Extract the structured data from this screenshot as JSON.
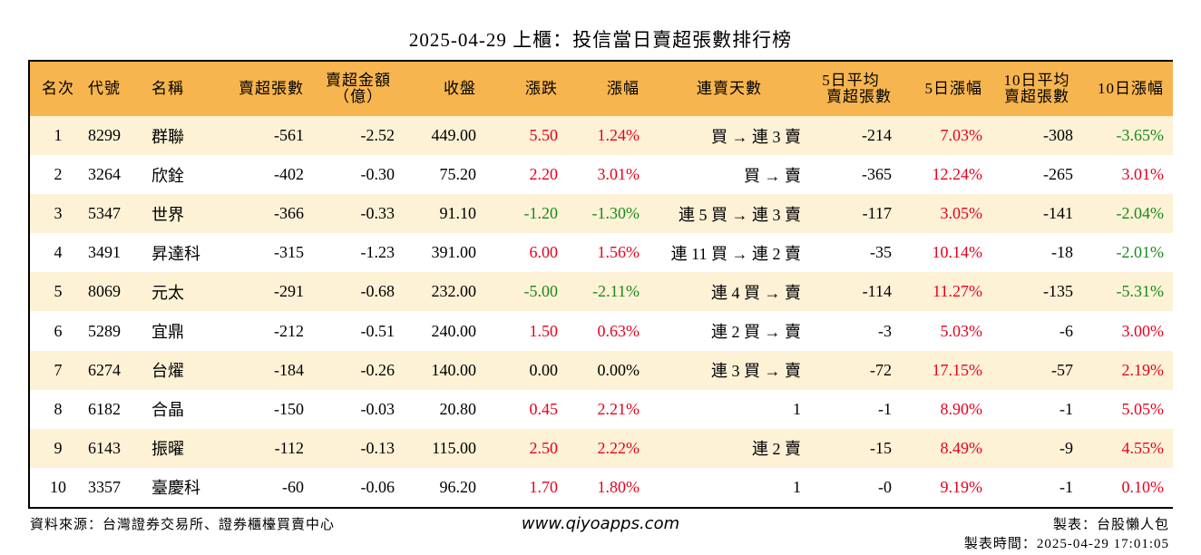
{
  "title": "2025-04-29 上櫃：投信當日賣超張數排行榜",
  "headers": {
    "rank": "名次",
    "code": "代號",
    "name": "名稱",
    "sell_shares": "賣超張數",
    "sell_amount_1": "賣超金額",
    "sell_amount_2": "（億）",
    "close": "收盤",
    "change": "漲跌",
    "change_pct": "漲幅",
    "streak": "連賣天數",
    "avg5_1": "5日平均",
    "avg5_2": "賣超張數",
    "pct5": "5日漲幅",
    "avg10_1": "10日平均",
    "avg10_2": "賣超張數",
    "pct10": "10日漲幅"
  },
  "rows": [
    {
      "rank": "1",
      "code": "8299",
      "name": "群聯",
      "sell_shares": "-561",
      "sell_amount": "-2.52",
      "close": "449.00",
      "change": "5.50",
      "change_pct": "1.24%",
      "streak": "買 → 連 3 賣",
      "avg5": "-214",
      "pct5": "7.03%",
      "avg10": "-308",
      "pct10": "-3.65%"
    },
    {
      "rank": "2",
      "code": "3264",
      "name": "欣銓",
      "sell_shares": "-402",
      "sell_amount": "-0.30",
      "close": "75.20",
      "change": "2.20",
      "change_pct": "3.01%",
      "streak": "買 → 賣",
      "avg5": "-365",
      "pct5": "12.24%",
      "avg10": "-265",
      "pct10": "3.01%"
    },
    {
      "rank": "3",
      "code": "5347",
      "name": "世界",
      "sell_shares": "-366",
      "sell_amount": "-0.33",
      "close": "91.10",
      "change": "-1.20",
      "change_pct": "-1.30%",
      "streak": "連 5 買 → 連 3 賣",
      "avg5": "-117",
      "pct5": "3.05%",
      "avg10": "-141",
      "pct10": "-2.04%"
    },
    {
      "rank": "4",
      "code": "3491",
      "name": "昇達科",
      "sell_shares": "-315",
      "sell_amount": "-1.23",
      "close": "391.00",
      "change": "6.00",
      "change_pct": "1.56%",
      "streak": "連 11 買 → 連 2 賣",
      "avg5": "-35",
      "pct5": "10.14%",
      "avg10": "-18",
      "pct10": "-2.01%"
    },
    {
      "rank": "5",
      "code": "8069",
      "name": "元太",
      "sell_shares": "-291",
      "sell_amount": "-0.68",
      "close": "232.00",
      "change": "-5.00",
      "change_pct": "-2.11%",
      "streak": "連 4 買 → 賣",
      "avg5": "-114",
      "pct5": "11.27%",
      "avg10": "-135",
      "pct10": "-5.31%"
    },
    {
      "rank": "6",
      "code": "5289",
      "name": "宜鼎",
      "sell_shares": "-212",
      "sell_amount": "-0.51",
      "close": "240.00",
      "change": "1.50",
      "change_pct": "0.63%",
      "streak": "連 2 買 → 賣",
      "avg5": "-3",
      "pct5": "5.03%",
      "avg10": "-6",
      "pct10": "3.00%"
    },
    {
      "rank": "7",
      "code": "6274",
      "name": "台燿",
      "sell_shares": "-184",
      "sell_amount": "-0.26",
      "close": "140.00",
      "change": "0.00",
      "change_pct": "0.00%",
      "streak": "連 3 買 → 賣",
      "avg5": "-72",
      "pct5": "17.15%",
      "avg10": "-57",
      "pct10": "2.19%"
    },
    {
      "rank": "8",
      "code": "6182",
      "name": "合晶",
      "sell_shares": "-150",
      "sell_amount": "-0.03",
      "close": "20.80",
      "change": "0.45",
      "change_pct": "2.21%",
      "streak": "1",
      "avg5": "-1",
      "pct5": "8.90%",
      "avg10": "-1",
      "pct10": "5.05%"
    },
    {
      "rank": "9",
      "code": "6143",
      "name": "振曜",
      "sell_shares": "-112",
      "sell_amount": "-0.13",
      "close": "115.00",
      "change": "2.50",
      "change_pct": "2.22%",
      "streak": "連 2 賣",
      "avg5": "-15",
      "pct5": "8.49%",
      "avg10": "-9",
      "pct10": "4.55%"
    },
    {
      "rank": "10",
      "code": "3357",
      "name": "臺慶科",
      "sell_shares": "-60",
      "sell_amount": "-0.06",
      "close": "96.20",
      "change": "1.70",
      "change_pct": "1.80%",
      "streak": "1",
      "avg5": "-0",
      "pct5": "9.19%",
      "avg10": "-1",
      "pct10": "0.10%"
    }
  ],
  "colors": {
    "header_bg": "#f7b54f",
    "odd_row_bg": "#fdf1d6",
    "up": "#e8001c",
    "down": "#1a8a1a"
  },
  "footer": {
    "source": "資料來源：台灣證券交易所、證券櫃檯買賣中心",
    "site": "www.qiyoapps.com",
    "maker": "製表：台股懶人包",
    "time": "製表時間：2025-04-29 17:01:05"
  }
}
